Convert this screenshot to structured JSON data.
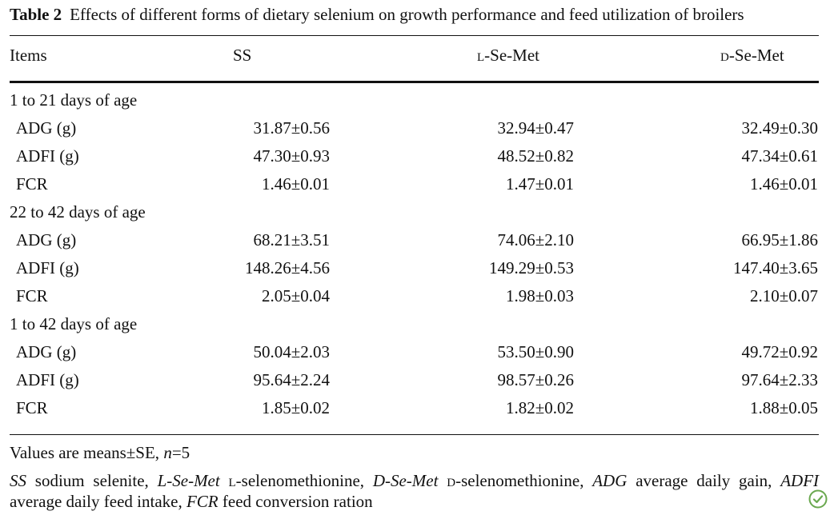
{
  "title": {
    "label": "Table 2",
    "text": "Effects of different forms of dietary selenium on growth performance and feed utilization of broilers"
  },
  "columns": [
    "Items",
    "SS",
    "L-Se-Met",
    "D-Se-Met"
  ],
  "sections": [
    {
      "label": "1 to 21 days of age",
      "rows": [
        {
          "item": "ADG (g)",
          "ss": "31.87±0.56",
          "l": "32.94±0.47",
          "d": "32.49±0.30"
        },
        {
          "item": "ADFI (g)",
          "ss": "47.30±0.93",
          "l": "48.52±0.82",
          "d": "47.34±0.61"
        },
        {
          "item": "FCR",
          "ss": "1.46±0.01",
          "l": "1.47±0.01",
          "d": "1.46±0.01"
        }
      ]
    },
    {
      "label": "22 to 42 days of age",
      "rows": [
        {
          "item": "ADG (g)",
          "ss": "68.21±3.51",
          "l": "74.06±2.10",
          "d": "66.95±1.86"
        },
        {
          "item": "ADFI (g)",
          "ss": "148.26±4.56",
          "l": "149.29±0.53",
          "d": "147.40±3.65"
        },
        {
          "item": "FCR",
          "ss": "2.05±0.04",
          "l": "1.98±0.03",
          "d": "2.10±0.07"
        }
      ]
    },
    {
      "label": "1 to 42 days of age",
      "rows": [
        {
          "item": "ADG (g)",
          "ss": "50.04±2.03",
          "l": "53.50±0.90",
          "d": "49.72±0.92"
        },
        {
          "item": "ADFI (g)",
          "ss": "95.64±2.24",
          "l": "98.57±0.26",
          "d": "97.64±2.33"
        },
        {
          "item": "FCR",
          "ss": "1.85±0.02",
          "l": "1.82±0.02",
          "d": "1.88±0.05"
        }
      ]
    }
  ],
  "notes": {
    "values": {
      "prefix": "Values are means±SE, ",
      "n_var": "n",
      "n_val": "=5"
    },
    "abbreviations": [
      {
        "abbr": "SS",
        "def": "sodium selenite"
      },
      {
        "abbr": "L-Se-Met",
        "def_pre": "L",
        "def": "-selenomethionine"
      },
      {
        "abbr": "D-Se-Met",
        "def_pre": "D",
        "def": "-selenomethionine"
      },
      {
        "abbr": "ADG",
        "def": "average daily gain"
      },
      {
        "abbr": "ADFI",
        "def": "average daily feed intake"
      },
      {
        "abbr": "FCR",
        "def": "feed conversion ration"
      }
    ]
  },
  "badge_icon": "crossmark-icon",
  "colors": {
    "text": "#111111",
    "badge": "#6aa84f"
  }
}
